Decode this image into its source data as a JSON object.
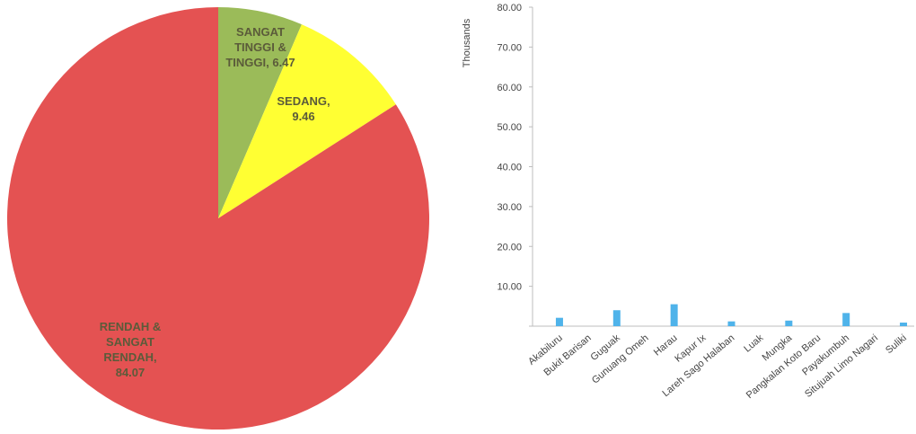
{
  "chart_data": [
    {
      "type": "pie",
      "slices": [
        {
          "name": "SANGAT TINGGI & TINGGI",
          "value": 6.47,
          "color": "#9bbb59",
          "label_lines": [
            "SANGAT",
            "TINGGI &",
            "TINGGI, 6.47"
          ]
        },
        {
          "name": "SEDANG",
          "value": 9.46,
          "color": "#ffff33",
          "label_lines": [
            "SEDANG,",
            "9.46"
          ]
        },
        {
          "name": "RENDAH & SANGAT RENDAH",
          "value": 84.07,
          "color": "#e45252",
          "label_lines": [
            "RENDAH &",
            "SANGAT",
            "RENDAH,",
            "84.07"
          ]
        }
      ],
      "start": "top, clockwise"
    },
    {
      "type": "bar",
      "ylabel": "Thousands",
      "ylim": [
        0,
        80
      ],
      "yticks": [
        "",
        "10.00",
        "20.00",
        "30.00",
        "40.00",
        "50.00",
        "60.00",
        "70.00",
        "80.00"
      ],
      "bar_color": "#4fb3ea",
      "categories": [
        "Akabiluru",
        "Bukit Barisan",
        "Guguak",
        "Gunuang Omeh",
        "Harau",
        "Kapur Ix",
        "Lareh Sago Halaban",
        "Luak",
        "Mungka",
        "Pangkalan Koto Baru",
        "Payakumbuh",
        "Situjuah Limo Nagari",
        "Suliki"
      ],
      "values": [
        2.1,
        0.0,
        4.0,
        0.0,
        5.5,
        0.0,
        1.2,
        0.0,
        1.4,
        0.0,
        3.3,
        0.0,
        0.9
      ]
    }
  ]
}
